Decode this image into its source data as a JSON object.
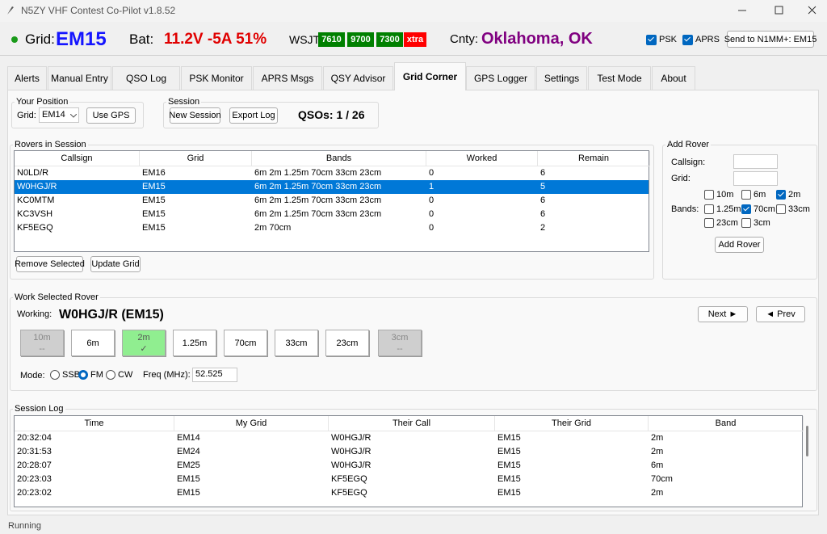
{
  "window": {
    "title": "N5ZY VHF Contest Co-Pilot v1.8.52"
  },
  "header": {
    "grid_label": "Grid:",
    "grid": "EM15",
    "bat_label": "Bat:",
    "battery": "11.2V -5A 51%",
    "wsjt_label": "WSJT:",
    "wsjt": [
      {
        "label": "7610",
        "color": "#008000"
      },
      {
        "label": "9700",
        "color": "#008000"
      },
      {
        "label": "7300",
        "color": "#008000"
      },
      {
        "label": "xtra",
        "color": "#ff0000"
      }
    ],
    "county_label": "Cnty:",
    "county": "Oklahoma, OK",
    "toggles": [
      {
        "label": "PSK",
        "checked": true
      },
      {
        "label": "APRS",
        "checked": true
      }
    ],
    "send_button": "Send to N1MM+: EM15"
  },
  "tabs": {
    "items": [
      "Alerts",
      "Manual Entry",
      "QSO Log",
      "PSK Monitor",
      "APRS Msgs",
      "QSY Advisor",
      "Grid Corner",
      "GPS Logger",
      "Settings",
      "Test Mode",
      "About"
    ],
    "active": 6
  },
  "position": {
    "title": "Your Position",
    "grid_label": "Grid:",
    "grid": "EM14",
    "gps_button": "Use GPS"
  },
  "session": {
    "title": "Session",
    "new_button": "New Session",
    "export_button": "Export Log",
    "qsos": "QSOs: 1 / 26"
  },
  "rovers": {
    "title": "Rovers in Session",
    "columns": [
      "Callsign",
      "Grid",
      "Bands",
      "Worked",
      "Remain"
    ],
    "rows": [
      [
        "N0LD/R",
        "EM16",
        "6m 2m 1.25m 70cm 33cm 23cm",
        "0",
        "6"
      ],
      [
        "W0HGJ/R",
        "EM15",
        "6m 2m 1.25m 70cm 33cm 23cm",
        "1",
        "5"
      ],
      [
        "KC0MTM",
        "EM15",
        "6m 2m 1.25m 70cm 33cm 23cm",
        "0",
        "6"
      ],
      [
        "KC3VSH",
        "EM15",
        "6m 2m 1.25m 70cm 33cm 23cm",
        "0",
        "6"
      ],
      [
        "KF5EGQ",
        "EM15",
        "2m 70cm",
        "0",
        "2"
      ]
    ],
    "selected": 1,
    "remove_button": "Remove Selected",
    "update_button": "Update Grid"
  },
  "add_rover": {
    "title": "Add Rover",
    "callsign_label": "Callsign:",
    "grid_label": "Grid:",
    "bands_label": "Bands:",
    "bands": [
      {
        "label": "10m",
        "checked": false
      },
      {
        "label": "6m",
        "checked": false
      },
      {
        "label": "2m",
        "checked": true
      },
      {
        "label": "1.25m",
        "checked": false
      },
      {
        "label": "70cm",
        "checked": true
      },
      {
        "label": "33cm",
        "checked": false
      },
      {
        "label": "23cm",
        "checked": false
      },
      {
        "label": "3cm",
        "checked": false
      }
    ],
    "button": "Add Rover"
  },
  "work": {
    "title": "Work Selected Rover",
    "working_label": "Working:",
    "working": "W0HGJ/R (EM15)",
    "next_button": "Next ►",
    "prev_button": "◄ Prev",
    "bands": [
      {
        "label": "10m",
        "status": "--"
      },
      {
        "label": "6m"
      },
      {
        "label": "2m",
        "status": "✓"
      },
      {
        "label": "1.25m"
      },
      {
        "label": "70cm"
      },
      {
        "label": "33cm"
      },
      {
        "label": "23cm"
      },
      {
        "label": "3cm",
        "status": "--"
      }
    ],
    "mode_label": "Mode:",
    "modes": [
      "SSB",
      "FM",
      "CW"
    ],
    "selected_mode": 1,
    "freq_label": "Freq (MHz):",
    "freq": "52.525"
  },
  "log": {
    "title": "Session Log",
    "columns": [
      "Time",
      "My Grid",
      "Their Call",
      "Their Grid",
      "Band"
    ],
    "rows": [
      [
        "20:32:04",
        "EM14",
        "W0HGJ/R",
        "EM15",
        "2m"
      ],
      [
        "20:31:53",
        "EM24",
        "W0HGJ/R",
        "EM15",
        "2m"
      ],
      [
        "20:28:07",
        "EM25",
        "W0HGJ/R",
        "EM15",
        "6m"
      ],
      [
        "20:23:03",
        "EM15",
        "KF5EGQ",
        "EM15",
        "70cm"
      ],
      [
        "20:23:02",
        "EM15",
        "KF5EGQ",
        "EM15",
        "2m"
      ]
    ]
  },
  "status": "Running"
}
